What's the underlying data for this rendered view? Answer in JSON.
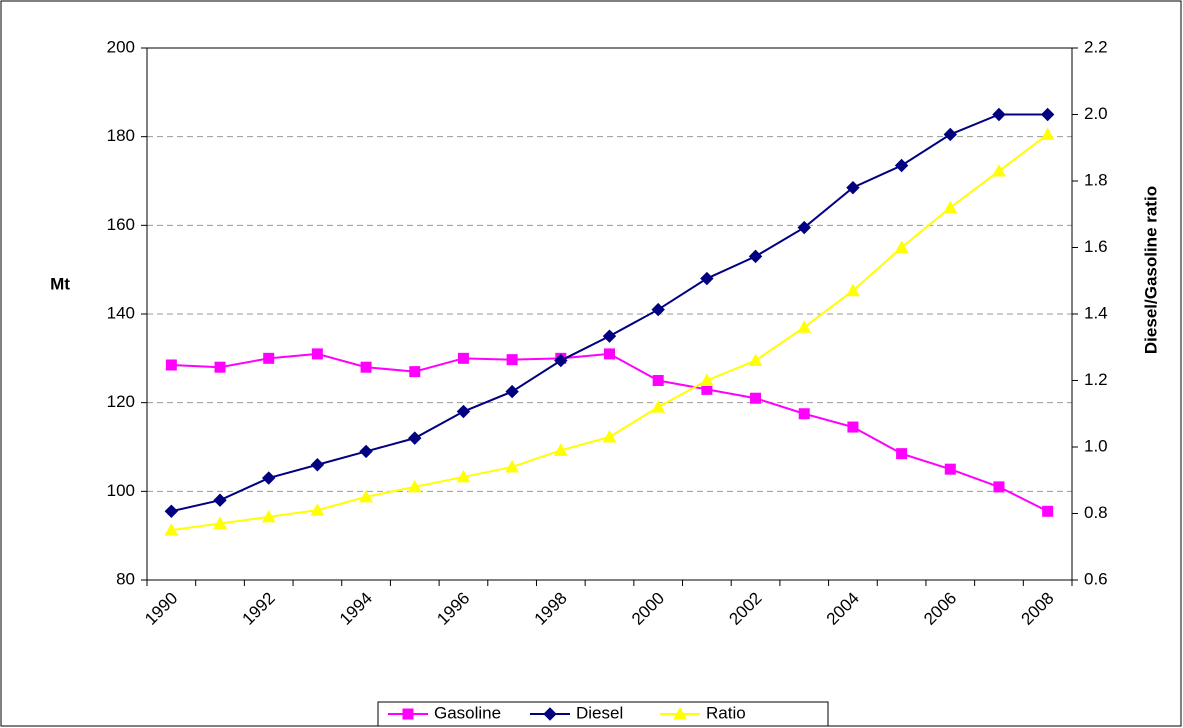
{
  "chart_data": {
    "type": "line",
    "categories": [
      1990,
      null,
      1992,
      null,
      1994,
      null,
      1996,
      null,
      1998,
      null,
      2000,
      null,
      2002,
      null,
      2004,
      null,
      2006,
      null,
      2008
    ],
    "y_label": "Mt",
    "y2_label": "Diesel/Gasoline ratio",
    "ylim": [
      80,
      200
    ],
    "yticks": [
      80,
      100,
      120,
      140,
      160,
      180,
      200
    ],
    "y2lim": [
      0.6,
      2.2
    ],
    "y2ticks": [
      {
        "value": 0.6,
        "label": "0.6"
      },
      {
        "value": 0.8,
        "label": "0.8"
      },
      {
        "value": 1.0,
        "label": "1.0"
      },
      {
        "value": 1.2,
        "label": "1.2"
      },
      {
        "value": 1.4,
        "label": "1.4"
      },
      {
        "value": 1.6,
        "label": "1.6"
      },
      {
        "value": 1.8,
        "label": "1.8"
      },
      {
        "value": 2.0,
        "label": "2.0"
      },
      {
        "value": 2.2,
        "label": "2.2"
      }
    ],
    "grid": true,
    "legend": "bottom",
    "series": [
      {
        "name": "Gasoline",
        "color": "#ff00ff",
        "marker": "square",
        "values": [
          128.5,
          128,
          130,
          131,
          128,
          127,
          130,
          129.7,
          130,
          131,
          125,
          123,
          121,
          117.5,
          114.5,
          108.5,
          105,
          101,
          95.5
        ]
      },
      {
        "name": "Diesel",
        "color": "#000080",
        "marker": "diamond",
        "values": [
          95.5,
          98,
          103,
          106,
          109,
          112,
          118,
          122.5,
          129.5,
          135,
          141,
          148,
          153,
          159.5,
          168.5,
          173.5,
          180.5,
          185,
          185
        ]
      },
      {
        "name": "Ratio",
        "color": "#ffff00",
        "marker": "triangle",
        "axis": "y2",
        "values": [
          0.75,
          0.77,
          0.79,
          0.81,
          0.85,
          0.88,
          0.91,
          0.94,
          0.99,
          1.03,
          1.12,
          1.2,
          1.26,
          1.36,
          1.47,
          1.6,
          1.72,
          1.83,
          1.94
        ]
      }
    ]
  }
}
